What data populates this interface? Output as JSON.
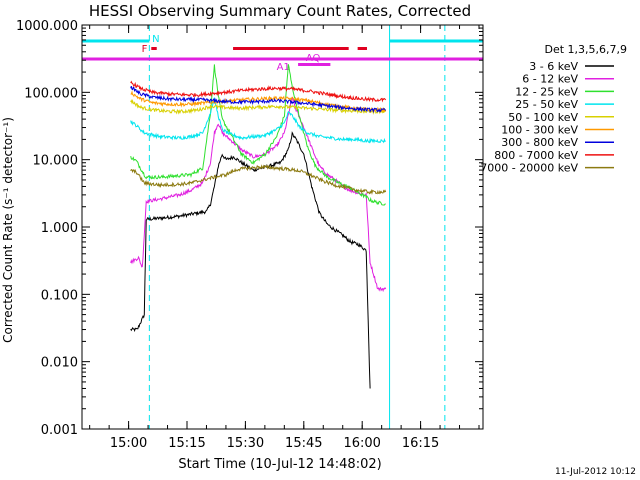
{
  "chart_data": {
    "type": "line",
    "title": "HESSI Observing Summary Count Rates, Corrected",
    "xlabel": "Start Time (10-Jul-12 14:48:02)",
    "ylabel": "Corrected Count Rate (s⁻¹ detector⁻¹)",
    "ylog": true,
    "ylim": [
      0.001,
      1000
    ],
    "xlim_minutes": [
      0,
      103
    ],
    "yticks": [
      "0.001",
      "0.010",
      "0.100",
      "1.000",
      "10.000",
      "100.000",
      "1000.000"
    ],
    "xticks": [
      {
        "label": "15:00",
        "minutes": 11.97
      },
      {
        "label": "15:15",
        "minutes": 26.97
      },
      {
        "label": "15:30",
        "minutes": 41.97
      },
      {
        "label": "15:45",
        "minutes": 56.97
      },
      {
        "label": "16:00",
        "minutes": 71.97
      },
      {
        "label": "16:15",
        "minutes": 86.97
      }
    ],
    "legend_title": "Det 1,3,5,6,7,9",
    "legend_position": "right",
    "footer_date": "11-Jul-2012 10:12",
    "flag_labels": {
      "night": "N",
      "flare": "F",
      "attenuator": "A1",
      "saa": "AQ"
    },
    "colors": {
      "background": "#ffffff",
      "axes": "#000000",
      "night_bar": "#00e5ee",
      "flare_bar": "#e00020",
      "attenuator_bar": "#e020e0"
    },
    "series": [
      {
        "name": "3 - 6 keV",
        "color": "#000000",
        "points": [
          [
            12.5,
            0.03
          ],
          [
            14.2,
            0.03
          ],
          [
            16.0,
            0.05
          ],
          [
            16.5,
            1.3
          ],
          [
            20,
            1.35
          ],
          [
            25,
            1.45
          ],
          [
            28,
            1.55
          ],
          [
            32,
            1.7
          ],
          [
            33,
            2.2
          ],
          [
            34,
            4
          ],
          [
            35,
            8
          ],
          [
            36,
            12
          ],
          [
            37,
            10
          ],
          [
            39,
            11
          ],
          [
            41,
            9
          ],
          [
            44,
            7
          ],
          [
            48,
            8
          ],
          [
            51,
            9
          ],
          [
            53,
            14
          ],
          [
            54,
            24
          ],
          [
            55,
            20
          ],
          [
            57,
            12
          ],
          [
            59,
            4
          ],
          [
            61,
            1.6
          ],
          [
            63,
            1.1
          ],
          [
            65,
            0.9
          ],
          [
            67,
            0.75
          ],
          [
            69,
            0.6
          ],
          [
            71,
            0.55
          ],
          [
            73,
            0.45
          ],
          [
            74,
            0.004
          ]
        ]
      },
      {
        "name": "6 - 12 keV",
        "color": "#e020e0",
        "points": [
          [
            12.5,
            0.3
          ],
          [
            14.5,
            0.35
          ],
          [
            15.5,
            0.25
          ],
          [
            16.5,
            2.4
          ],
          [
            20,
            2.6
          ],
          [
            25,
            3
          ],
          [
            28,
            3.5
          ],
          [
            31,
            4.5
          ],
          [
            33,
            9
          ],
          [
            34,
            25
          ],
          [
            35,
            35
          ],
          [
            36,
            25
          ],
          [
            38,
            20
          ],
          [
            41,
            14
          ],
          [
            44,
            11
          ],
          [
            47,
            12
          ],
          [
            50,
            16
          ],
          [
            52,
            25
          ],
          [
            54,
            85
          ],
          [
            55,
            55
          ],
          [
            57,
            30
          ],
          [
            59,
            15
          ],
          [
            61,
            8
          ],
          [
            63,
            6
          ],
          [
            65,
            5
          ],
          [
            67,
            4
          ],
          [
            69,
            3.5
          ],
          [
            71,
            3.2
          ],
          [
            73,
            3
          ],
          [
            74,
            0.3
          ],
          [
            76,
            0.12
          ],
          [
            78,
            0.12
          ]
        ]
      },
      {
        "name": "12 - 25 keV",
        "color": "#2ee02e",
        "points": [
          [
            12.5,
            11
          ],
          [
            14,
            9.5
          ],
          [
            16,
            6
          ],
          [
            16.5,
            5.5
          ],
          [
            20,
            5.5
          ],
          [
            25,
            5.8
          ],
          [
            28,
            6
          ],
          [
            31,
            7.5
          ],
          [
            33,
            50
          ],
          [
            34,
            250
          ],
          [
            35,
            90
          ],
          [
            36,
            40
          ],
          [
            38,
            25
          ],
          [
            41,
            12
          ],
          [
            44,
            9
          ],
          [
            47,
            12
          ],
          [
            50,
            22
          ],
          [
            52,
            45
          ],
          [
            53,
            260
          ],
          [
            54,
            120
          ],
          [
            56,
            40
          ],
          [
            58,
            15
          ],
          [
            60,
            8
          ],
          [
            63,
            5.5
          ],
          [
            66,
            4.5
          ],
          [
            69,
            3.8
          ],
          [
            71,
            3.2
          ],
          [
            73,
            2.8
          ],
          [
            74,
            2.5
          ],
          [
            76,
            2.3
          ],
          [
            78,
            2.2
          ]
        ]
      },
      {
        "name": "25 - 50 keV",
        "color": "#00e5ee",
        "points": [
          [
            12.5,
            37
          ],
          [
            14,
            32
          ],
          [
            16,
            25
          ],
          [
            20,
            22
          ],
          [
            25,
            21
          ],
          [
            28,
            22
          ],
          [
            31,
            25
          ],
          [
            33,
            50
          ],
          [
            34,
            80
          ],
          [
            35,
            45
          ],
          [
            36,
            28
          ],
          [
            38,
            24
          ],
          [
            41,
            21
          ],
          [
            44,
            22
          ],
          [
            47,
            23
          ],
          [
            50,
            28
          ],
          [
            52,
            35
          ],
          [
            53,
            50
          ],
          [
            54,
            45
          ],
          [
            56,
            30
          ],
          [
            58,
            25
          ],
          [
            61,
            22
          ],
          [
            64,
            21
          ],
          [
            67,
            20
          ],
          [
            70,
            20
          ],
          [
            73,
            19
          ],
          [
            76,
            19
          ],
          [
            78,
            19
          ]
        ]
      },
      {
        "name": "50 - 100 keV",
        "color": "#d8d000",
        "points": [
          [
            12.5,
            75
          ],
          [
            15,
            60
          ],
          [
            18,
            55
          ],
          [
            22,
            52
          ],
          [
            26,
            52
          ],
          [
            30,
            55
          ],
          [
            33,
            62
          ],
          [
            36,
            60
          ],
          [
            40,
            58
          ],
          [
            45,
            60
          ],
          [
            50,
            62
          ],
          [
            54,
            60
          ],
          [
            58,
            58
          ],
          [
            62,
            56
          ],
          [
            66,
            54
          ],
          [
            70,
            53
          ],
          [
            74,
            52
          ],
          [
            78,
            52
          ]
        ]
      },
      {
        "name": "100 - 300 keV",
        "color": "#ff9900",
        "points": [
          [
            12.5,
            100
          ],
          [
            15,
            80
          ],
          [
            18,
            70
          ],
          [
            22,
            67
          ],
          [
            26,
            66
          ],
          [
            30,
            68
          ],
          [
            34,
            72
          ],
          [
            38,
            75
          ],
          [
            42,
            78
          ],
          [
            46,
            80
          ],
          [
            50,
            82
          ],
          [
            54,
            80
          ],
          [
            58,
            75
          ],
          [
            62,
            68
          ],
          [
            66,
            62
          ],
          [
            70,
            58
          ],
          [
            74,
            55
          ],
          [
            78,
            55
          ]
        ]
      },
      {
        "name": "300 - 800 keV",
        "color": "#0000dd",
        "points": [
          [
            12.5,
            120
          ],
          [
            15,
            95
          ],
          [
            18,
            85
          ],
          [
            22,
            80
          ],
          [
            26,
            78
          ],
          [
            30,
            78
          ],
          [
            34,
            75
          ],
          [
            38,
            72
          ],
          [
            42,
            72
          ],
          [
            46,
            73
          ],
          [
            50,
            75
          ],
          [
            54,
            72
          ],
          [
            58,
            68
          ],
          [
            62,
            64
          ],
          [
            66,
            60
          ],
          [
            70,
            57
          ],
          [
            74,
            55
          ],
          [
            78,
            54
          ]
        ]
      },
      {
        "name": "800 - 7000 keV",
        "color": "#ee1010",
        "points": [
          [
            12.5,
            140
          ],
          [
            15,
            115
          ],
          [
            18,
            100
          ],
          [
            22,
            95
          ],
          [
            26,
            92
          ],
          [
            30,
            92
          ],
          [
            34,
            97
          ],
          [
            38,
            102
          ],
          [
            42,
            108
          ],
          [
            46,
            112
          ],
          [
            50,
            115
          ],
          [
            54,
            112
          ],
          [
            58,
            105
          ],
          [
            62,
            96
          ],
          [
            66,
            88
          ],
          [
            70,
            82
          ],
          [
            74,
            78
          ],
          [
            78,
            77
          ]
        ]
      },
      {
        "name": "7000 - 20000 keV",
        "color": "#8c7a10",
        "points": [
          [
            12.5,
            7
          ],
          [
            14,
            6.5
          ],
          [
            16,
            4.5
          ],
          [
            20,
            4.2
          ],
          [
            25,
            4.3
          ],
          [
            28,
            4.5
          ],
          [
            31,
            5
          ],
          [
            34,
            5.5
          ],
          [
            37,
            6
          ],
          [
            40,
            7.2
          ],
          [
            43,
            7.5
          ],
          [
            46,
            7.8
          ],
          [
            50,
            7.5
          ],
          [
            53,
            7.2
          ],
          [
            56,
            6.8
          ],
          [
            59,
            5.8
          ],
          [
            62,
            4.8
          ],
          [
            65,
            4.2
          ],
          [
            68,
            3.8
          ],
          [
            71,
            3.5
          ],
          [
            74,
            3.3
          ],
          [
            76,
            3.3
          ],
          [
            78,
            3.3
          ]
        ]
      }
    ]
  }
}
